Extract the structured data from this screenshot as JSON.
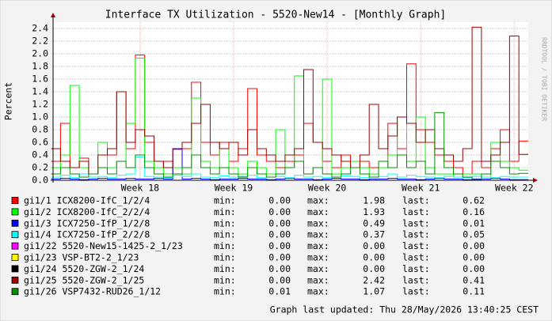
{
  "chart_data": {
    "type": "step-line",
    "title": "Interface TX Utilization - 5520-New14 - [Monthly Graph]",
    "y_label": "Percent",
    "side_label": "RRDTOOL / TOBI OETIKER",
    "footer": "Graph last updated: Thu 28/May/2026 13:40:25 CEST",
    "stat_labels": [
      "min:",
      "max:",
      "last:"
    ],
    "xlim": [
      17.07,
      22.15
    ],
    "xticks": [
      {
        "value": 18,
        "label": "Week 18"
      },
      {
        "value": 19,
        "label": "Week 19"
      },
      {
        "value": 20,
        "label": "Week 20"
      },
      {
        "value": 21,
        "label": "Week 21"
      },
      {
        "value": 22,
        "label": "Week 22"
      }
    ],
    "ylim": [
      0,
      2.5
    ],
    "yticks": [
      {
        "value": 0,
        "label": "0.0"
      },
      0.2,
      0.4,
      0.6,
      0.8,
      {
        "value": 1,
        "label": "1.0"
      },
      1.2,
      1.4,
      1.6,
      1.8,
      {
        "value": 2,
        "label": "2.0"
      },
      2.2,
      2.4
    ],
    "grid": true,
    "x": [
      17.1,
      17.2,
      17.3,
      17.4,
      17.5,
      17.6,
      17.7,
      17.8,
      17.9,
      18.0,
      18.1,
      18.2,
      18.3,
      18.4,
      18.5,
      18.6,
      18.7,
      18.8,
      18.9,
      19.0,
      19.1,
      19.2,
      19.3,
      19.4,
      19.5,
      19.6,
      19.7,
      19.8,
      19.9,
      20.0,
      20.1,
      20.2,
      20.3,
      20.4,
      20.5,
      20.6,
      20.7,
      20.8,
      20.9,
      21.0,
      21.1,
      21.2,
      21.3,
      21.4,
      21.5,
      21.6,
      21.7,
      21.8,
      21.9,
      22.0,
      22.1
    ],
    "series": [
      {
        "name": "gi1/1 ICX8200-IfC_1/2/4",
        "color": "#ff0000",
        "min": {
          "value": 0,
          "label": "0.00"
        },
        "max": 1.98,
        "last": 0.62,
        "values": [
          0.3,
          0.9,
          0.2,
          0.35,
          0.1,
          0.2,
          0.4,
          1.4,
          0.5,
          1.98,
          0.6,
          0.2,
          0.3,
          0.1,
          0.5,
          1.55,
          0.6,
          0.4,
          0.6,
          0.3,
          0.5,
          1.45,
          0.4,
          0.3,
          0.2,
          0.3,
          0.4,
          0.9,
          0.6,
          0.3,
          0.2,
          0.4,
          0.2,
          0.3,
          0.2,
          0.3,
          0.9,
          0.5,
          1.84,
          0.8,
          0.6,
          0.4,
          0.3,
          0.2,
          0.1,
          0.3,
          0.2,
          0.5,
          0.8,
          0.3,
          0.62
        ]
      },
      {
        "name": "gi1/2 ICX8200-IfC_2/2/4",
        "color": "#00ff00",
        "min": {
          "value": 0,
          "label": "0.00"
        },
        "max": 1.93,
        "last": 0.16,
        "values": [
          0.2,
          0.4,
          1.5,
          0.2,
          0.1,
          0.6,
          0.2,
          0.3,
          0.9,
          1.93,
          0.3,
          0.2,
          0.1,
          0.2,
          0.1,
          1.3,
          0.3,
          0.2,
          0.5,
          0.2,
          0.1,
          0.3,
          0.2,
          0.1,
          0.8,
          0.2,
          1.65,
          0.1,
          0.2,
          1.6,
          0.1,
          0.2,
          0.3,
          0.2,
          0.1,
          0.2,
          0.4,
          1.0,
          0.3,
          1.0,
          0.2,
          0.1,
          0.1,
          0.05,
          0.1,
          0.1,
          0.05,
          0.6,
          0.3,
          0.2,
          0.16
        ]
      },
      {
        "name": "gi1/3 ICX7250-IfP_1/2/8",
        "color": "#0000ff",
        "min": {
          "value": 0,
          "label": "0.00"
        },
        "max": 0.49,
        "last": 0.01,
        "values": [
          0.02,
          0.03,
          0.02,
          0.01,
          0.02,
          0.03,
          0.02,
          0.02,
          0.03,
          0.02,
          0.02,
          0.03,
          0.02,
          0.49,
          0.02,
          0.03,
          0.02,
          0.01,
          0.02,
          0.02,
          0.03,
          0.02,
          0.02,
          0.01,
          0.02,
          0.03,
          0.02,
          0.02,
          0.01,
          0.02,
          0.03,
          0.02,
          0.02,
          0.01,
          0.02,
          0.02,
          0.03,
          0.02,
          0.02,
          0.01,
          0.02,
          0.03,
          0.02,
          0.02,
          0.01,
          0.02,
          0.02,
          0.03,
          0.02,
          0.01,
          0.01
        ]
      },
      {
        "name": "gi1/4 ICX7250-IfP_2/2/8",
        "color": "#00ffff",
        "min": {
          "value": 0,
          "label": "0.00"
        },
        "max": 0.37,
        "last": 0.05,
        "values": [
          0.05,
          0.08,
          0.04,
          0.1,
          0.05,
          0.06,
          0.04,
          0.08,
          0.1,
          0.37,
          0.06,
          0.05,
          0.04,
          0.08,
          0.06,
          0.1,
          0.05,
          0.04,
          0.07,
          0.05,
          0.06,
          0.08,
          0.04,
          0.05,
          0.06,
          0.04,
          0.08,
          0.05,
          0.06,
          0.04,
          0.05,
          0.07,
          0.06,
          0.04,
          0.05,
          0.06,
          0.1,
          0.05,
          0.08,
          0.06,
          0.05,
          0.04,
          0.06,
          0.05,
          0.04,
          0.06,
          0.05,
          0.04,
          0.06,
          0.05,
          0.05
        ]
      },
      {
        "name": "gi1/22 5520-New15-1425-2_1/23",
        "color": "#ff00ff",
        "min": {
          "value": 0,
          "label": "0.00"
        },
        "max": {
          "value": 0,
          "label": "0.00"
        },
        "last": {
          "value": 0,
          "label": "0.00"
        },
        "values": [
          0,
          0,
          0,
          0,
          0,
          0,
          0,
          0,
          0,
          0,
          0,
          0,
          0,
          0,
          0,
          0,
          0,
          0,
          0,
          0,
          0,
          0,
          0,
          0,
          0,
          0,
          0,
          0,
          0,
          0,
          0,
          0,
          0,
          0,
          0,
          0,
          0,
          0,
          0,
          0,
          0,
          0,
          0,
          0,
          0,
          0,
          0,
          0,
          0,
          0,
          0
        ]
      },
      {
        "name": "gi1/23 VSP-BT2-2_1/23",
        "color": "#ffff00",
        "min": {
          "value": 0,
          "label": "0.00"
        },
        "max": {
          "value": 0,
          "label": "0.00"
        },
        "last": {
          "value": 0,
          "label": "0.00"
        },
        "values": [
          0,
          0,
          0,
          0,
          0,
          0,
          0,
          0,
          0,
          0,
          0,
          0,
          0,
          0,
          0,
          0,
          0,
          0,
          0,
          0,
          0,
          0,
          0,
          0,
          0,
          0,
          0,
          0,
          0,
          0,
          0,
          0,
          0,
          0,
          0,
          0,
          0,
          0,
          0,
          0,
          0,
          0,
          0,
          0,
          0,
          0,
          0,
          0,
          0,
          0,
          0
        ]
      },
      {
        "name": "gi1/24 5520-ZGW-2_1/24",
        "color": "#000000",
        "min": {
          "value": 0,
          "label": "0.00"
        },
        "max": {
          "value": 0,
          "label": "0.00"
        },
        "last": {
          "value": 0,
          "label": "0.00"
        },
        "values": [
          0,
          0,
          0,
          0,
          0,
          0,
          0,
          0,
          0,
          0,
          0,
          0,
          0,
          0,
          0,
          0,
          0,
          0,
          0,
          0,
          0,
          0,
          0,
          0,
          0,
          0,
          0,
          0,
          0,
          0,
          0,
          0,
          0,
          0,
          0,
          0,
          0,
          0,
          0,
          0,
          0,
          0,
          0,
          0,
          0,
          0,
          0,
          0,
          0,
          0,
          0
        ]
      },
      {
        "name": "gi1/25 5520-ZGW-2_1/25",
        "color": "#a00000",
        "min": {
          "value": 0,
          "label": "0.00"
        },
        "max": 2.42,
        "last": 0.41,
        "values": [
          0.5,
          0.3,
          0.2,
          0.3,
          0.1,
          0.4,
          0.5,
          1.4,
          0.6,
          0.8,
          0.7,
          0.3,
          0.2,
          0.5,
          0.6,
          0.9,
          1.2,
          0.6,
          0.5,
          0.6,
          0.4,
          0.8,
          0.5,
          0.4,
          0.3,
          0.4,
          0.5,
          1.75,
          0.6,
          0.5,
          0.4,
          0.3,
          0.2,
          0.4,
          1.2,
          0.5,
          0.7,
          1.0,
          0.9,
          0.6,
          0.8,
          0.5,
          0.4,
          0.3,
          0.5,
          2.42,
          0.3,
          0.4,
          0.6,
          2.28,
          0.41
        ]
      },
      {
        "name": "gi1/26 VSP7432-RUD26_1/12",
        "color": "#008f00",
        "min": 0.01,
        "max": 1.07,
        "last": 0.11,
        "values": [
          0.1,
          0.2,
          0.1,
          0.05,
          0.1,
          0.2,
          0.1,
          0.3,
          0.2,
          0.4,
          0.2,
          0.1,
          0.05,
          0.1,
          0.2,
          0.4,
          0.2,
          0.1,
          0.2,
          0.1,
          0.05,
          0.2,
          0.1,
          0.05,
          0.1,
          0.2,
          0.3,
          0.1,
          0.2,
          0.1,
          0.05,
          0.1,
          0.2,
          0.1,
          0.05,
          0.3,
          0.2,
          0.4,
          0.2,
          0.3,
          0.1,
          1.07,
          0.2,
          0.1,
          0.05,
          0.01,
          0.1,
          0.3,
          0.2,
          0.1,
          0.11
        ]
      }
    ]
  }
}
